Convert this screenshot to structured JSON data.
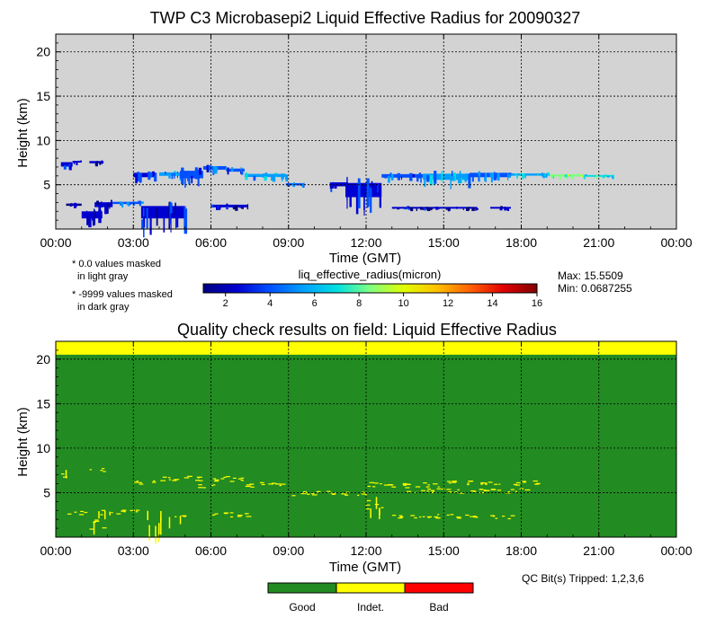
{
  "chart_data": [
    {
      "type": "heatmap",
      "title": "TWP C3 Microbasepi2 Liquid Effective Radius for 20090327",
      "xlabel": "Time (GMT)",
      "ylabel": "Height (km)",
      "x_ticks": [
        "00:00",
        "03:00",
        "06:00",
        "09:00",
        "12:00",
        "15:00",
        "18:00",
        "21:00",
        "00:00"
      ],
      "y_ticks": [
        "5",
        "10",
        "15",
        "20"
      ],
      "xlim_hours": [
        0,
        24
      ],
      "ylim_km": [
        0,
        22
      ],
      "grid": true,
      "background_color": "#d3d3d3",
      "notes": [
        "* 0.0 values masked",
        "in light gray",
        "* -9999 values masked",
        "in dark gray"
      ],
      "colorbar": {
        "label": "liq_effective_radius(micron)",
        "ticks": [
          "2",
          "4",
          "6",
          "8",
          "10",
          "12",
          "14",
          "16"
        ],
        "range": [
          1,
          16
        ],
        "colors": [
          "#000080",
          "#0000d0",
          "#0050ff",
          "#00a0ff",
          "#00e0e0",
          "#80ff80",
          "#e0ff00",
          "#ffc000",
          "#ff6000",
          "#e00000",
          "#800000"
        ]
      },
      "stats": {
        "max": "Max: 15.5509",
        "min": "Min: 0.0687255"
      },
      "cloud_features": [
        {
          "t": [
            0.2,
            0.65
          ],
          "z": [
            6.8,
            7.8
          ],
          "value": 2.5
        },
        {
          "t": [
            0.65,
            1.0
          ],
          "z": [
            7.4,
            7.8
          ],
          "value": 2.0
        },
        {
          "t": [
            1.3,
            1.85
          ],
          "z": [
            7.3,
            7.8
          ],
          "value": 1.8
        },
        {
          "t": [
            0.4,
            1.0
          ],
          "z": [
            2.5,
            3.0
          ],
          "value": 1.5
        },
        {
          "t": [
            1.0,
            1.8
          ],
          "z": [
            0.8,
            2.4
          ],
          "value": 1.8
        },
        {
          "t": [
            1.5,
            2.2
          ],
          "z": [
            2.2,
            3.3
          ],
          "value": 2.2
        },
        {
          "t": [
            2.2,
            3.3
          ],
          "z": [
            2.7,
            3.2
          ],
          "value": 4.5
        },
        {
          "t": [
            3.0,
            3.8
          ],
          "z": [
            5.6,
            6.6
          ],
          "value": 3.0
        },
        {
          "t": [
            3.3,
            5.0
          ],
          "z": [
            0.5,
            3.3
          ],
          "value": 2.5
        },
        {
          "t": [
            4.0,
            4.8
          ],
          "z": [
            5.8,
            6.6
          ],
          "value": 5.0
        },
        {
          "t": [
            4.8,
            5.7
          ],
          "z": [
            5.3,
            7.0
          ],
          "value": 3.5
        },
        {
          "t": [
            5.7,
            6.6
          ],
          "z": [
            6.5,
            7.3
          ],
          "value": 4.0
        },
        {
          "t": [
            6.6,
            7.3
          ],
          "z": [
            6.3,
            7.0
          ],
          "value": 3.5
        },
        {
          "t": [
            6.0,
            7.4
          ],
          "z": [
            2.3,
            2.9
          ],
          "value": 2.0
        },
        {
          "t": [
            7.3,
            8.9
          ],
          "z": [
            5.7,
            6.4
          ],
          "value": 5.5
        },
        {
          "t": [
            8.9,
            9.6
          ],
          "z": [
            4.8,
            5.3
          ],
          "value": 4.5
        },
        {
          "t": [
            10.6,
            11.3
          ],
          "z": [
            4.6,
            5.5
          ],
          "value": 3.0
        },
        {
          "t": [
            11.2,
            12.6
          ],
          "z": [
            2.8,
            6.0
          ],
          "value": 3.0
        },
        {
          "t": [
            12.6,
            14.2
          ],
          "z": [
            5.6,
            6.4
          ],
          "value": 3.8
        },
        {
          "t": [
            14.2,
            16.0
          ],
          "z": [
            5.2,
            6.6
          ],
          "value": 5.5
        },
        {
          "t": [
            16.0,
            17.6
          ],
          "z": [
            5.6,
            6.6
          ],
          "value": 4.5
        },
        {
          "t": [
            17.6,
            19.1
          ],
          "z": [
            5.9,
            6.4
          ],
          "value": 6.0
        },
        {
          "t": [
            19.1,
            20.4
          ],
          "z": [
            5.8,
            6.3
          ],
          "value": 8.0
        },
        {
          "t": [
            20.4,
            21.6
          ],
          "z": [
            5.8,
            6.2
          ],
          "value": 7.0
        },
        {
          "t": [
            13.0,
            16.3
          ],
          "z": [
            2.2,
            2.6
          ],
          "value": 2.0
        },
        {
          "t": [
            16.8,
            17.6
          ],
          "z": [
            2.2,
            2.6
          ],
          "value": 1.8
        }
      ]
    },
    {
      "type": "heatmap",
      "title": "Quality check results on field: Liquid Effective Radius",
      "xlabel": "Time (GMT)",
      "ylabel": "Height (km)",
      "x_ticks": [
        "00:00",
        "03:00",
        "06:00",
        "09:00",
        "12:00",
        "15:00",
        "18:00",
        "21:00",
        "00:00"
      ],
      "y_ticks": [
        "5",
        "10",
        "15",
        "20"
      ],
      "xlim_hours": [
        0,
        24
      ],
      "ylim_km": [
        0,
        22
      ],
      "grid": true,
      "background_color": "#228b22",
      "indeterminate_band_km": [
        20.5,
        22
      ],
      "legend": [
        {
          "label": "Good",
          "color": "#228b22"
        },
        {
          "label": "Indet.",
          "color": "#ffff00"
        },
        {
          "label": "Bad",
          "color": "#ff0000"
        }
      ],
      "qc_bits": "QC Bit(s) Tripped: 1,2,3,6",
      "indeterminate_features": [
        {
          "t": [
            0.2,
            0.6
          ],
          "z": [
            6.8,
            7.8
          ]
        },
        {
          "t": [
            1.3,
            1.85
          ],
          "z": [
            7.3,
            7.8
          ]
        },
        {
          "t": [
            0.4,
            1.1
          ],
          "z": [
            2.5,
            3.0
          ]
        },
        {
          "t": [
            1.0,
            1.8
          ],
          "z": [
            0.8,
            2.4
          ]
        },
        {
          "t": [
            1.5,
            2.3
          ],
          "z": [
            2.2,
            3.2
          ]
        },
        {
          "t": [
            3.3,
            5.0
          ],
          "z": [
            0.8,
            3.2
          ]
        },
        {
          "t": [
            2.2,
            3.2
          ],
          "z": [
            2.6,
            3.1
          ]
        },
        {
          "t": [
            3.0,
            3.8
          ],
          "z": [
            6.0,
            6.4
          ]
        },
        {
          "t": [
            4.0,
            7.3
          ],
          "z": [
            6.3,
            6.9
          ]
        },
        {
          "t": [
            5.5,
            6.2
          ],
          "z": [
            5.6,
            6.0
          ]
        },
        {
          "t": [
            6.0,
            7.4
          ],
          "z": [
            2.3,
            2.8
          ]
        },
        {
          "t": [
            7.3,
            9.0
          ],
          "z": [
            5.6,
            6.2
          ]
        },
        {
          "t": [
            9.0,
            12.0
          ],
          "z": [
            4.7,
            5.2
          ]
        },
        {
          "t": [
            11.3,
            12.6
          ],
          "z": [
            3.0,
            4.6
          ]
        },
        {
          "t": [
            12.0,
            15.0
          ],
          "z": [
            5.6,
            6.2
          ]
        },
        {
          "t": [
            13.5,
            18.2
          ],
          "z": [
            5.0,
            5.5
          ]
        },
        {
          "t": [
            15.0,
            18.6
          ],
          "z": [
            5.9,
            6.4
          ]
        },
        {
          "t": [
            13.0,
            16.3
          ],
          "z": [
            2.2,
            2.6
          ]
        },
        {
          "t": [
            16.8,
            17.6
          ],
          "z": [
            2.1,
            2.5
          ]
        }
      ]
    }
  ]
}
